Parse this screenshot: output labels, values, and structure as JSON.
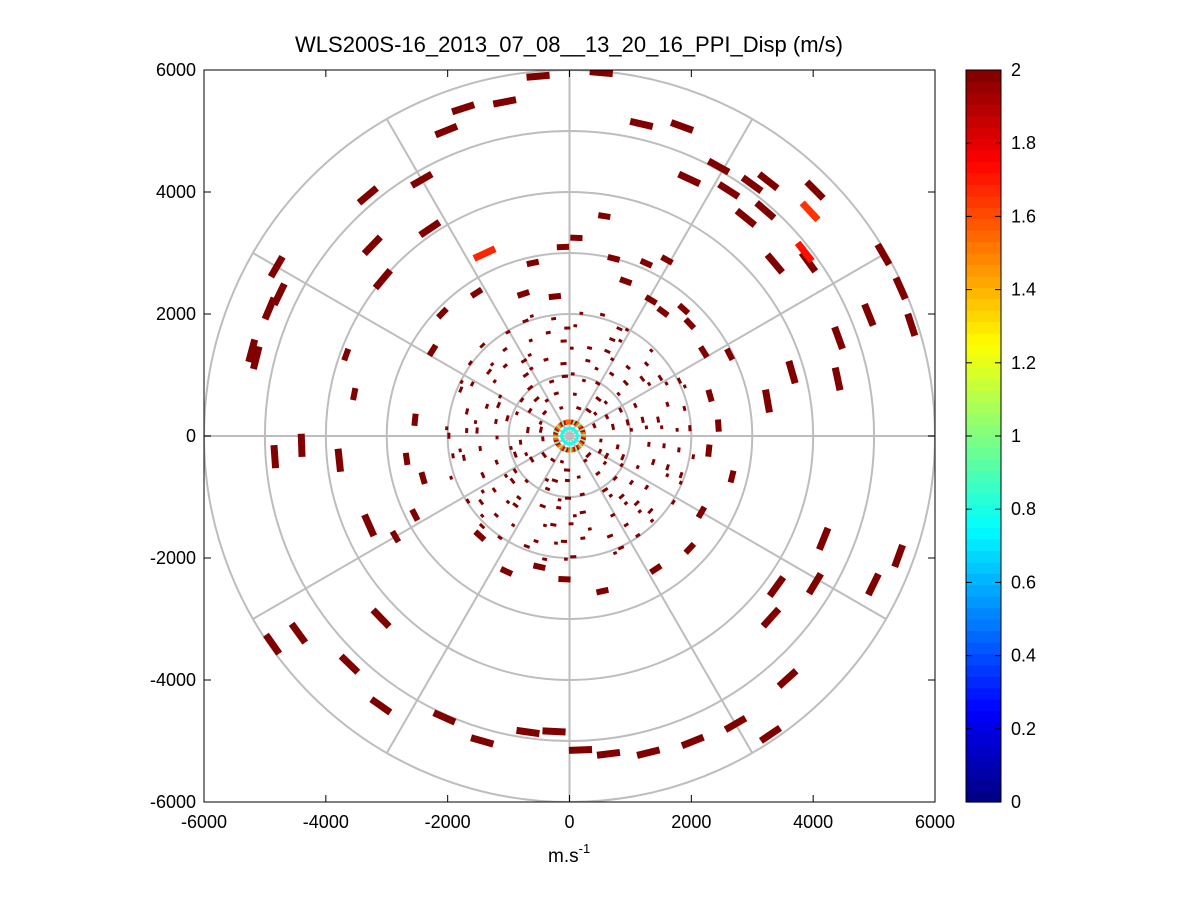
{
  "chart_data": {
    "type": "heatmap",
    "subtype": "polar-ppi",
    "title": "WLS200S-16_2013_07_08__13_20_16_PPI_Disp (m/s)",
    "xlabel": "m.s",
    "xlabel_sup": "-1",
    "ylabel": "",
    "xlim": [
      -6000,
      6000
    ],
    "ylim": [
      -6000,
      6000
    ],
    "x_ticks": [
      -6000,
      -4000,
      -2000,
      0,
      2000,
      4000,
      6000
    ],
    "x_tick_labels": [
      "-6000",
      "-4000",
      "-2000",
      "0",
      "2000",
      "4000",
      "6000"
    ],
    "y_ticks": [
      6000,
      4000,
      2000,
      0,
      -2000,
      -4000,
      -6000
    ],
    "y_tick_labels": [
      "6000",
      "4000",
      "2000",
      "0",
      "-2000",
      "-4000",
      "-6000"
    ],
    "polar_grid_radii": [
      1000,
      2000,
      3000,
      4000,
      5000,
      6000
    ],
    "polar_spoke_angles_deg": [
      0,
      30,
      60,
      90,
      120,
      150,
      180,
      210,
      240,
      270,
      300,
      330
    ],
    "colorbar": {
      "colormap": "jet",
      "clim": [
        0,
        2
      ],
      "ticks": [
        0,
        0.2,
        0.4,
        0.6,
        0.8,
        1,
        1.2,
        1.4,
        1.6,
        1.8,
        2
      ],
      "tick_labels": [
        "0",
        "0.2",
        "0.4",
        "0.6",
        "0.8",
        "1",
        "1.2",
        "1.4",
        "1.6",
        "1.8",
        "2"
      ]
    },
    "dominant_value": 2,
    "outer_segments": [
      {
        "az": 349,
        "r": 5580,
        "v": 2
      },
      {
        "az": 342,
        "r": 5650,
        "v": 2
      },
      {
        "az": 355,
        "r": 5920,
        "v": 2
      },
      {
        "az": 5,
        "r": 5980,
        "v": 2
      },
      {
        "az": 13,
        "r": 5250,
        "v": 2
      },
      {
        "az": 20,
        "r": 5400,
        "v": 2
      },
      {
        "az": 25,
        "r": 4650,
        "v": 2
      },
      {
        "az": 29,
        "r": 5050,
        "v": 2
      },
      {
        "az": 36,
        "r": 5100,
        "v": 2
      },
      {
        "az": 39,
        "r": 4600,
        "v": 2
      },
      {
        "az": 33,
        "r": 4800,
        "v": 2
      },
      {
        "az": 38,
        "r": 5300,
        "v": 2
      },
      {
        "az": 41,
        "r": 4900,
        "v": 2
      },
      {
        "az": 45,
        "r": 5700,
        "v": 2
      },
      {
        "az": 47,
        "r": 5400,
        "v": 1.65
      },
      {
        "az": 54,
        "r": 4850,
        "v": 2
      },
      {
        "az": 50,
        "r": 4400,
        "v": 2
      },
      {
        "az": 52,
        "r": 4900,
        "v": 1.72
      },
      {
        "az": 60,
        "r": 5950,
        "v": 2
      },
      {
        "az": 66,
        "r": 5950,
        "v": 2
      },
      {
        "az": 68,
        "r": 5300,
        "v": 2
      },
      {
        "az": 72,
        "r": 5900,
        "v": 2
      },
      {
        "az": 70,
        "r": 4700,
        "v": 2
      },
      {
        "az": 78,
        "r": 4500,
        "v": 2
      },
      {
        "az": 74,
        "r": 3800,
        "v": 2
      },
      {
        "az": 80,
        "r": 3300,
        "v": 2
      },
      {
        "az": 110,
        "r": 5750,
        "v": 2
      },
      {
        "az": 112,
        "r": 4500,
        "v": 2
      },
      {
        "az": 116,
        "r": 5550,
        "v": 2
      },
      {
        "az": 121,
        "r": 4700,
        "v": 2
      },
      {
        "az": 126,
        "r": 4200,
        "v": 2
      },
      {
        "az": 132,
        "r": 4450,
        "v": 2
      },
      {
        "az": 138,
        "r": 5350,
        "v": 2
      },
      {
        "az": 146,
        "r": 5900,
        "v": 2
      },
      {
        "az": 150,
        "r": 5450,
        "v": 2
      },
      {
        "az": 158,
        "r": 5400,
        "v": 2
      },
      {
        "az": 166,
        "r": 5350,
        "v": 2
      },
      {
        "az": 173,
        "r": 5250,
        "v": 2
      },
      {
        "az": 178,
        "r": 5150,
        "v": 2
      },
      {
        "az": 183,
        "r": 4850,
        "v": 2
      },
      {
        "az": 188,
        "r": 4900,
        "v": 2
      },
      {
        "az": 196,
        "r": 5200,
        "v": 2
      },
      {
        "az": 204,
        "r": 5050,
        "v": 2
      },
      {
        "az": 215,
        "r": 5400,
        "v": 2
      },
      {
        "az": 224,
        "r": 5200,
        "v": 2
      },
      {
        "az": 226,
        "r": 4300,
        "v": 2
      },
      {
        "az": 235,
        "r": 5950,
        "v": 2
      },
      {
        "az": 234,
        "r": 5500,
        "v": 2
      },
      {
        "az": 246,
        "r": 3600,
        "v": 2
      },
      {
        "az": 264,
        "r": 3800,
        "v": 2
      },
      {
        "az": 268,
        "r": 4400,
        "v": 2
      },
      {
        "az": 266,
        "r": 4850,
        "v": 2
      },
      {
        "az": 284,
        "r": 5300,
        "v": 2
      },
      {
        "az": 285,
        "r": 5400,
        "v": 2
      },
      {
        "az": 293,
        "r": 5350,
        "v": 2
      },
      {
        "az": 296,
        "r": 5300,
        "v": 2
      },
      {
        "az": 300,
        "r": 5550,
        "v": 2
      },
      {
        "az": 310,
        "r": 4000,
        "v": 2
      },
      {
        "az": 314,
        "r": 4500,
        "v": 2
      },
      {
        "az": 320,
        "r": 5150,
        "v": 2
      },
      {
        "az": 326,
        "r": 4100,
        "v": 2
      },
      {
        "az": 330,
        "r": 4850,
        "v": 2
      },
      {
        "az": 335,
        "r": 3300,
        "v": 1.68
      },
      {
        "az": 338,
        "r": 5400,
        "v": 2
      }
    ],
    "mid_segments": [
      {
        "az": 358,
        "r": 3100,
        "v": 2
      },
      {
        "az": 2,
        "r": 3250,
        "v": 2
      },
      {
        "az": 9,
        "r": 3650,
        "v": 2
      },
      {
        "az": 14,
        "r": 3000,
        "v": 2
      },
      {
        "az": 20,
        "r": 2700,
        "v": 2
      },
      {
        "az": 24,
        "r": 3100,
        "v": 2
      },
      {
        "az": 29,
        "r": 3300,
        "v": 2
      },
      {
        "az": 31,
        "r": 2600,
        "v": 2
      },
      {
        "az": 37,
        "r": 2550,
        "v": 2
      },
      {
        "az": 42,
        "r": 2800,
        "v": 2
      },
      {
        "az": 47,
        "r": 2700,
        "v": 2
      },
      {
        "az": 58,
        "r": 2600,
        "v": 2
      },
      {
        "az": 63,
        "r": 2950,
        "v": 2
      },
      {
        "az": 74,
        "r": 2400,
        "v": 2
      },
      {
        "az": 86,
        "r": 2450,
        "v": 2
      },
      {
        "az": 96,
        "r": 2300,
        "v": 2
      },
      {
        "az": 104,
        "r": 2750,
        "v": 2
      },
      {
        "az": 120,
        "r": 2500,
        "v": 2
      },
      {
        "az": 133,
        "r": 2700,
        "v": 2
      },
      {
        "az": 147,
        "r": 2600,
        "v": 2
      },
      {
        "az": 168,
        "r": 2600,
        "v": 2
      },
      {
        "az": 182,
        "r": 2350,
        "v": 2
      },
      {
        "az": 193,
        "r": 2200,
        "v": 2
      },
      {
        "az": 205,
        "r": 2450,
        "v": 2
      },
      {
        "az": 222,
        "r": 2200,
        "v": 2
      },
      {
        "az": 240,
        "r": 3300,
        "v": 2
      },
      {
        "az": 243,
        "r": 2850,
        "v": 2
      },
      {
        "az": 254,
        "r": 2500,
        "v": 2
      },
      {
        "az": 262,
        "r": 2700,
        "v": 2
      },
      {
        "az": 276,
        "r": 2550,
        "v": 2
      },
      {
        "az": 281,
        "r": 3600,
        "v": 2
      },
      {
        "az": 290,
        "r": 3900,
        "v": 2
      },
      {
        "az": 302,
        "r": 2650,
        "v": 2
      },
      {
        "az": 314,
        "r": 2900,
        "v": 2
      },
      {
        "az": 327,
        "r": 2800,
        "v": 2
      },
      {
        "az": 342,
        "r": 2450,
        "v": 2
      },
      {
        "az": 348,
        "r": 2900,
        "v": 2
      },
      {
        "az": 354,
        "r": 2300,
        "v": 2
      }
    ],
    "inner_ring_radii": [
      500,
      750,
      1000,
      1250,
      1500,
      1750,
      2000
    ],
    "center_ring": {
      "r": 230,
      "v_outer": 1.55,
      "v_inner": 0.95
    }
  }
}
